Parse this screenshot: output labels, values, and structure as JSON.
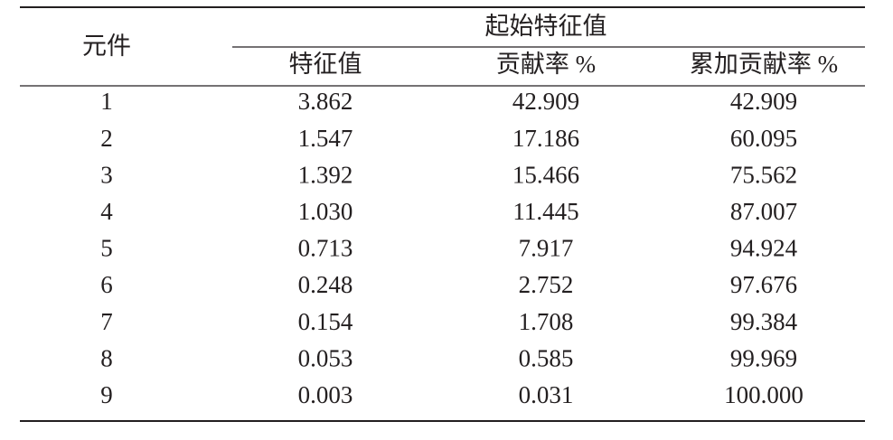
{
  "table": {
    "header": {
      "row_label": "元件",
      "group": "起始特征值",
      "columns": [
        "特征值",
        "贡献率 %",
        "累加贡献率 %"
      ]
    },
    "rows": [
      [
        "1",
        "3.862",
        "42.909",
        "42.909"
      ],
      [
        "2",
        "1.547",
        "17.186",
        "60.095"
      ],
      [
        "3",
        "1.392",
        "15.466",
        "75.562"
      ],
      [
        "4",
        "1.030",
        "11.445",
        "87.007"
      ],
      [
        "5",
        "0.713",
        "7.917",
        "94.924"
      ],
      [
        "6",
        "0.248",
        "2.752",
        "97.676"
      ],
      [
        "7",
        "0.154",
        "1.708",
        "99.384"
      ],
      [
        "8",
        "0.053",
        "0.585",
        "99.969"
      ],
      [
        "9",
        "0.003",
        "0.031",
        "100.000"
      ]
    ]
  }
}
